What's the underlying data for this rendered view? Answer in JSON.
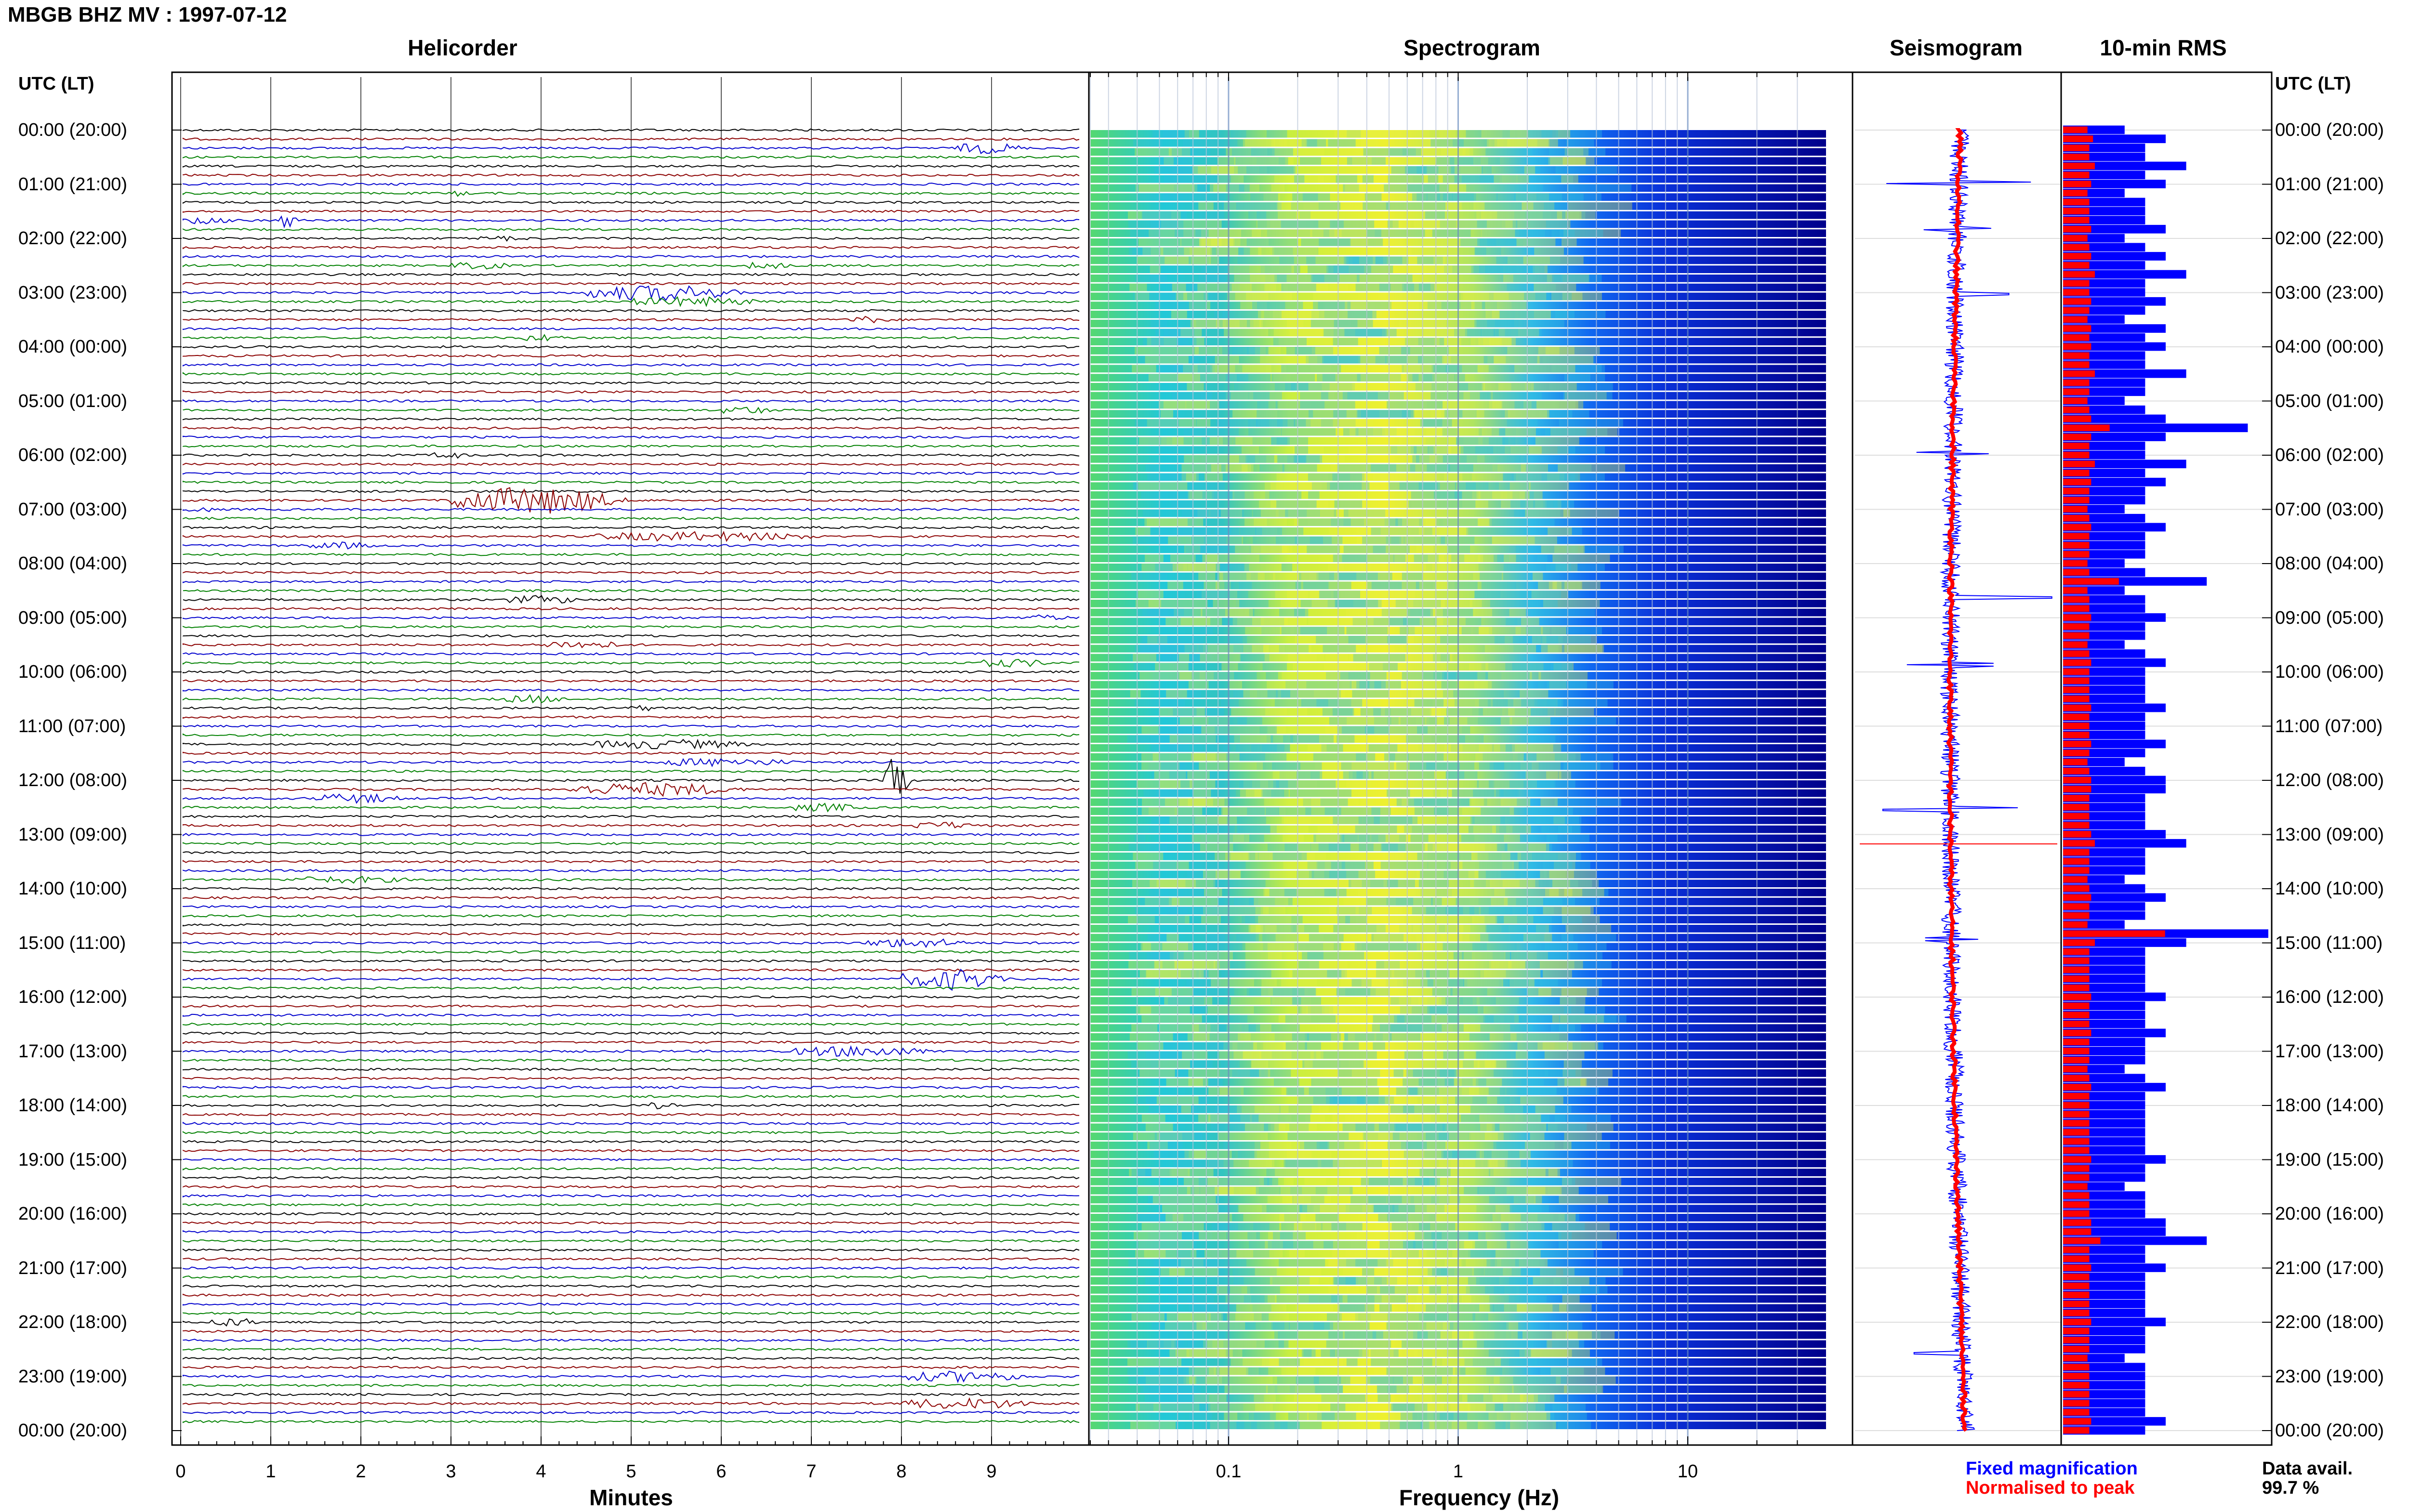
{
  "header": {
    "title": "MBGB BHZ MV : 1997-07-12"
  },
  "panels": {
    "helicorder": "Helicorder",
    "spectrogram": "Spectrogram",
    "seismogram": "Seismogram",
    "rms": "10-min RMS"
  },
  "time_axis": {
    "header_left": "UTC (LT)",
    "header_right": "UTC (LT)",
    "labels": [
      "00:00 (20:00)",
      "01:00 (21:00)",
      "02:00 (22:00)",
      "03:00 (23:00)",
      "04:00 (00:00)",
      "05:00 (01:00)",
      "06:00 (02:00)",
      "07:00 (03:00)",
      "08:00 (04:00)",
      "09:00 (05:00)",
      "10:00 (06:00)",
      "11:00 (07:00)",
      "12:00 (08:00)",
      "13:00 (09:00)",
      "14:00 (10:00)",
      "15:00 (11:00)",
      "16:00 (12:00)",
      "17:00 (13:00)",
      "18:00 (14:00)",
      "19:00 (15:00)",
      "20:00 (16:00)",
      "21:00 (17:00)",
      "22:00 (18:00)",
      "23:00 (19:00)",
      "00:00 (20:00)"
    ]
  },
  "helicorder_axis": {
    "xlabel": "Minutes",
    "ticks": [
      "0",
      "1",
      "2",
      "3",
      "4",
      "5",
      "6",
      "7",
      "8",
      "9"
    ],
    "trace_colors": [
      "#000000",
      "#8b0000",
      "#0000cd",
      "#008000"
    ]
  },
  "spectrogram_axis": {
    "xlabel": "Frequency (Hz)",
    "ticks": [
      "0.1",
      "1",
      "10"
    ],
    "scale": "log",
    "xlim": [
      0.025,
      40
    ]
  },
  "legend": {
    "fixed": "Fixed magnification",
    "fixed_color": "#0000ff",
    "normalised": "Normalised to peak",
    "normalised_color": "#ff0000",
    "avail_label": "Data avail.",
    "avail_value": "99.7 %"
  },
  "chart_data": {
    "type": "bar",
    "title": "10-min RMS",
    "categories_note": "hourly rows 00:00–24:00 UTC",
    "series": [
      {
        "name": "Fixed magnification",
        "color": "#0000ff",
        "values": [
          3,
          5,
          4,
          4,
          6,
          4,
          5,
          3,
          4,
          4,
          4,
          5,
          3,
          4,
          5,
          4,
          6,
          4,
          4,
          5,
          4,
          3,
          5,
          4,
          5,
          4,
          4,
          6,
          4,
          4,
          3,
          4,
          5,
          9,
          5,
          4,
          4,
          6,
          4,
          5,
          4,
          4,
          3,
          4,
          5,
          4,
          4,
          4,
          3,
          4,
          7,
          3,
          4,
          4,
          5,
          4,
          4,
          3,
          4,
          5,
          4,
          4,
          4,
          4,
          5,
          4,
          4,
          4,
          5,
          4,
          3,
          4,
          5,
          5,
          4,
          4,
          4,
          4,
          5,
          6,
          4,
          4,
          4,
          3,
          4,
          5,
          4,
          4,
          3,
          10,
          6,
          4,
          4,
          4,
          4,
          4,
          5,
          4,
          4,
          4,
          5,
          4,
          4,
          4,
          3,
          4,
          5,
          4,
          4,
          4,
          4,
          4,
          4,
          4,
          5,
          4,
          4,
          3,
          4,
          4,
          4,
          5,
          5,
          7,
          4,
          4,
          5,
          4,
          4,
          4,
          4,
          4,
          5,
          4,
          4,
          4,
          3,
          4,
          4,
          4,
          4,
          4,
          4,
          5,
          4,
          4
        ]
      },
      {
        "name": "Normalised to peak",
        "color": "#ff0000",
        "values": [
          1.6,
          2.2,
          1.8,
          1.8,
          2.4,
          1.8,
          2.0,
          1.6,
          1.8,
          1.8,
          1.8,
          2.0,
          1.6,
          1.8,
          2.0,
          1.8,
          2.4,
          1.8,
          1.8,
          2.0,
          1.8,
          1.6,
          2.0,
          1.8,
          2.0,
          1.8,
          1.8,
          2.4,
          1.8,
          1.8,
          1.6,
          1.8,
          2.0,
          4.0,
          2.0,
          1.8,
          1.8,
          2.4,
          1.8,
          2.0,
          1.8,
          1.8,
          1.6,
          1.8,
          2.0,
          1.8,
          1.8,
          1.8,
          1.6,
          1.8,
          5.0,
          1.6,
          1.8,
          1.8,
          2.0,
          1.8,
          1.8,
          1.6,
          1.8,
          2.0,
          1.8,
          1.8,
          1.8,
          1.8,
          2.0,
          1.8,
          1.8,
          1.8,
          2.0,
          1.8,
          1.6,
          1.8,
          2.0,
          2.0,
          1.8,
          1.8,
          1.8,
          1.8,
          2.0,
          2.4,
          1.8,
          1.8,
          1.8,
          1.6,
          1.8,
          2.0,
          1.8,
          1.8,
          1.6,
          10.0,
          2.4,
          1.8,
          1.8,
          1.8,
          1.8,
          1.8,
          2.0,
          1.8,
          1.8,
          1.8,
          2.0,
          1.8,
          1.8,
          1.8,
          1.6,
          1.8,
          2.0,
          1.8,
          1.8,
          1.8,
          1.8,
          1.8,
          1.8,
          1.8,
          2.0,
          1.8,
          1.8,
          1.6,
          1.8,
          1.8,
          1.8,
          2.0,
          2.0,
          3.0,
          1.8,
          1.8,
          2.0,
          1.8,
          1.8,
          1.8,
          1.8,
          1.8,
          2.0,
          1.8,
          1.8,
          1.8,
          1.6,
          1.8,
          1.8,
          1.8,
          1.8,
          1.8,
          1.8,
          2.0,
          1.8,
          1.8
        ]
      }
    ]
  }
}
